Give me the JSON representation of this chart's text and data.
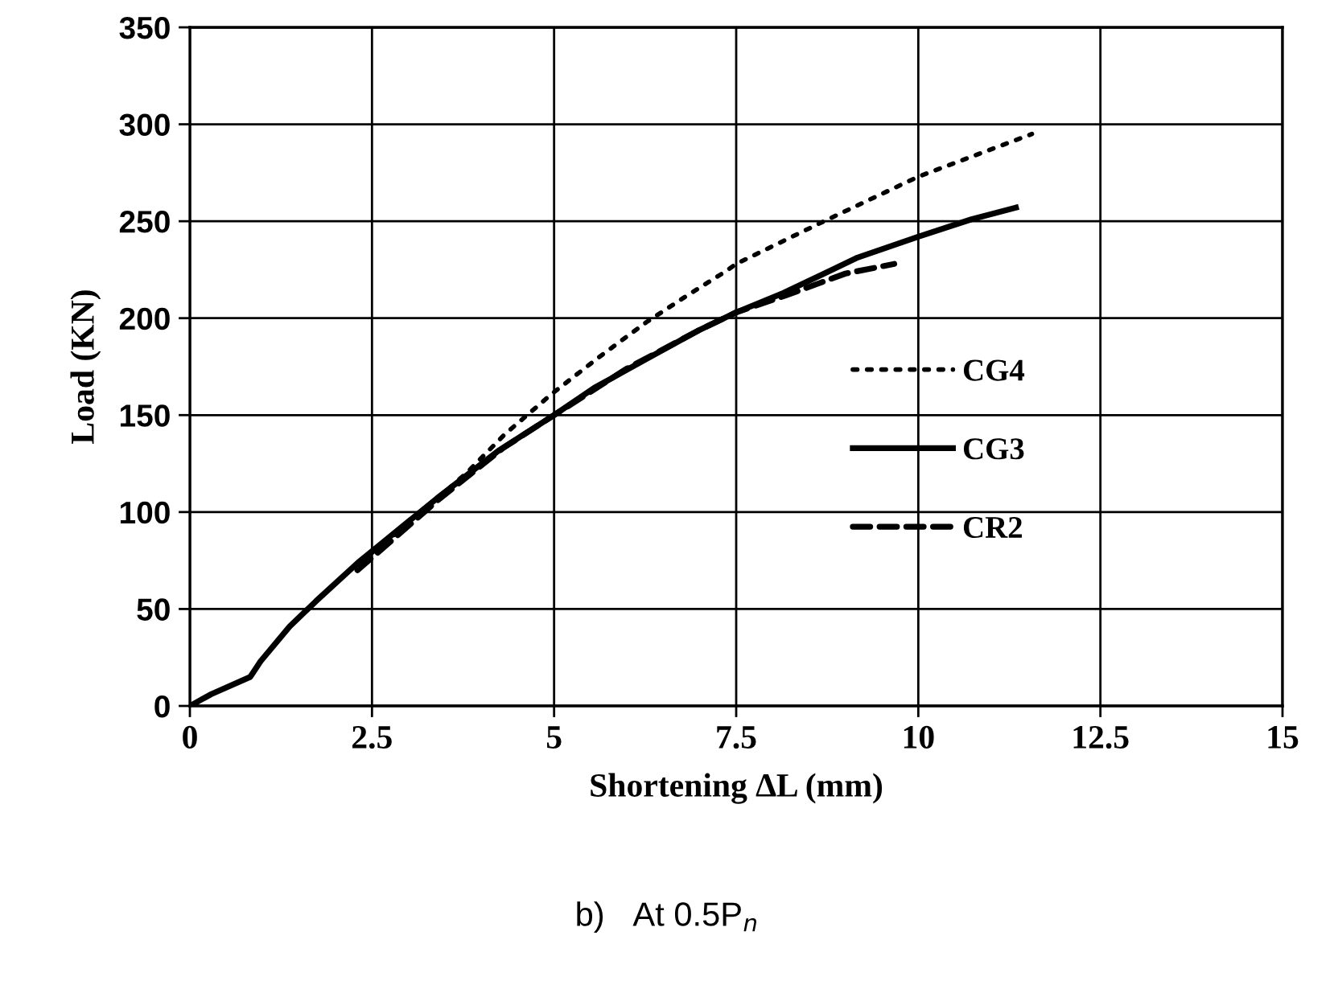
{
  "chart_data": {
    "type": "line",
    "xlabel": "Shortening ∆L (mm)",
    "ylabel": "Load (KN)",
    "annotations": [
      "b)   At 0.5P$_{n}$"
    ],
    "xlim": [
      0,
      15
    ],
    "xticks": [
      0,
      2.5,
      5,
      7.5,
      10,
      12.5,
      15
    ],
    "ylim": [
      0,
      350
    ],
    "yticks": [
      0,
      50,
      100,
      150,
      200,
      250,
      300,
      350
    ],
    "grid": true,
    "legend": "right",
    "marker": "none",
    "series": [
      {
        "name": "CG4",
        "color": "#000000",
        "line_style": "dotted",
        "x": [
          2.5,
          3.2,
          3.82,
          4.32,
          4.97,
          5.62,
          6.27,
          6.84,
          7.35,
          7.5,
          8.65,
          10.0,
          11.56
        ],
        "values": [
          79,
          100,
          121,
          140,
          161,
          180,
          198,
          212,
          224,
          228,
          249,
          273,
          295
        ]
      },
      {
        "name": "CG3",
        "color": "#000000",
        "line_style": "solid",
        "x": [
          0,
          0.29,
          0.83,
          0.97,
          1.37,
          1.73,
          2.31,
          2.67,
          3.39,
          4.25,
          5.0,
          5.55,
          6.27,
          7.0,
          7.5,
          8.15,
          9.15,
          10.0,
          10.73,
          11.34
        ],
        "values": [
          0,
          6,
          15,
          23,
          41,
          54,
          74,
          85,
          107,
          132,
          150,
          164,
          179,
          194,
          203,
          213,
          231,
          242,
          251,
          257
        ]
      },
      {
        "name": "CR2",
        "color": "#000000",
        "line_style": "dashed",
        "x": [
          2.3,
          2.7,
          3.4,
          4.3,
          5.0,
          6.0,
          7.0,
          7.5,
          8.2,
          9.0,
          9.67
        ],
        "values": [
          70,
          83,
          106,
          133,
          150,
          174,
          194,
          203,
          212,
          223,
          228
        ]
      }
    ]
  }
}
